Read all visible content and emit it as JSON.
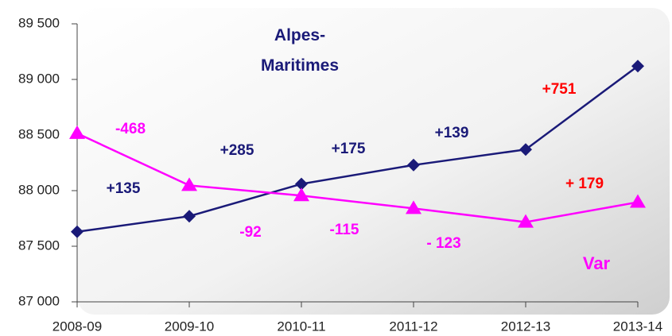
{
  "chart_data": {
    "type": "line",
    "categories": [
      "2008-09",
      "2009-10",
      "2010-11",
      "2011-12",
      "2012-13",
      "2013-14"
    ],
    "series": [
      {
        "name": "Alpes-Maritimes",
        "color": "#1a1a78",
        "marker": "diamond",
        "values": [
          87630,
          87770,
          88060,
          88230,
          88370,
          89120
        ]
      },
      {
        "name": "Var",
        "color": "#ff00ff",
        "marker": "triangle",
        "values": [
          88515,
          88047,
          87955,
          87840,
          87717,
          87896
        ]
      }
    ],
    "ylim": [
      87000,
      89500
    ],
    "yticks": [
      {
        "value": 87000,
        "label": "87 000"
      },
      {
        "value": 87500,
        "label": "87 500"
      },
      {
        "value": 88000,
        "label": "88 000"
      },
      {
        "value": 88500,
        "label": "88 500"
      },
      {
        "value": 89000,
        "label": "89 000"
      },
      {
        "value": 89500,
        "label": "89 500"
      }
    ],
    "annotations": [
      {
        "text": "+135",
        "color": "#1a1a78"
      },
      {
        "text": "+285",
        "color": "#1a1a78"
      },
      {
        "text": "+175",
        "color": "#1a1a78"
      },
      {
        "text": "+139",
        "color": "#1a1a78"
      },
      {
        "text": "+751",
        "color": "#ff0000"
      },
      {
        "text": "-468",
        "color": "#ff00ff"
      },
      {
        "text": "-92",
        "color": "#ff00ff"
      },
      {
        "text": "-115",
        "color": "#ff00ff"
      },
      {
        "text": "- 123",
        "color": "#ff00ff"
      },
      {
        "text": "+ 179",
        "color": "#ff0000"
      }
    ]
  }
}
